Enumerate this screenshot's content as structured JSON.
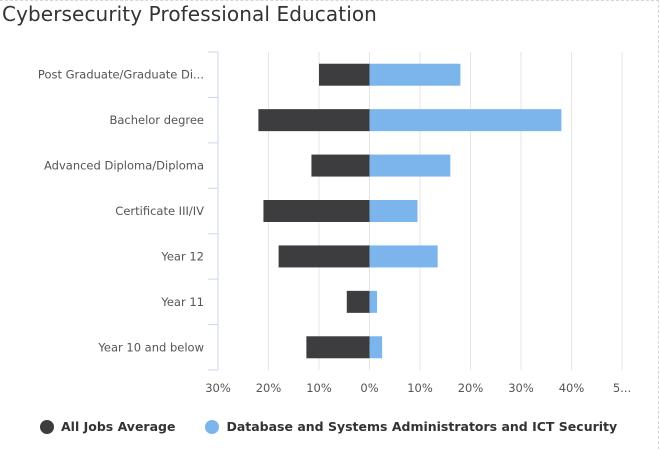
{
  "title": "Cybersecurity Professional Education",
  "colors": {
    "all_jobs": "#3d3d40",
    "db_admin": "#7cb5ec",
    "grid": "#e6e6e6",
    "axis": "#ccd6eb"
  },
  "legend": [
    {
      "label": "All Jobs Average",
      "color": "#3d3d40"
    },
    {
      "label": "Database and Systems Administrators and ICT Security",
      "color": "#7cb5ec"
    }
  ],
  "chart_data": {
    "type": "bar",
    "orientation": "horizontal-diverging",
    "title": "Cybersecurity Professional Education",
    "categories": [
      "Post Graduate/Graduate Di...",
      "Bachelor degree",
      "Advanced Diploma/Diploma",
      "Certificate III/IV",
      "Year 12",
      "Year 11",
      "Year 10 and below"
    ],
    "series": [
      {
        "name": "All Jobs Average",
        "values": [
          10,
          22,
          11.5,
          21,
          18,
          4.5,
          12.5
        ],
        "direction": "left"
      },
      {
        "name": "Database and Systems Administrators and ICT Security",
        "values": [
          18,
          38,
          16,
          9.5,
          13.5,
          1.5,
          2.5
        ],
        "direction": "right"
      }
    ],
    "xlim": [
      -30,
      50
    ],
    "x_ticks": [
      "30%",
      "20%",
      "10%",
      "0%",
      "10%",
      "20%",
      "30%",
      "40%",
      "5..."
    ],
    "grid": true,
    "legend_position": "bottom"
  }
}
